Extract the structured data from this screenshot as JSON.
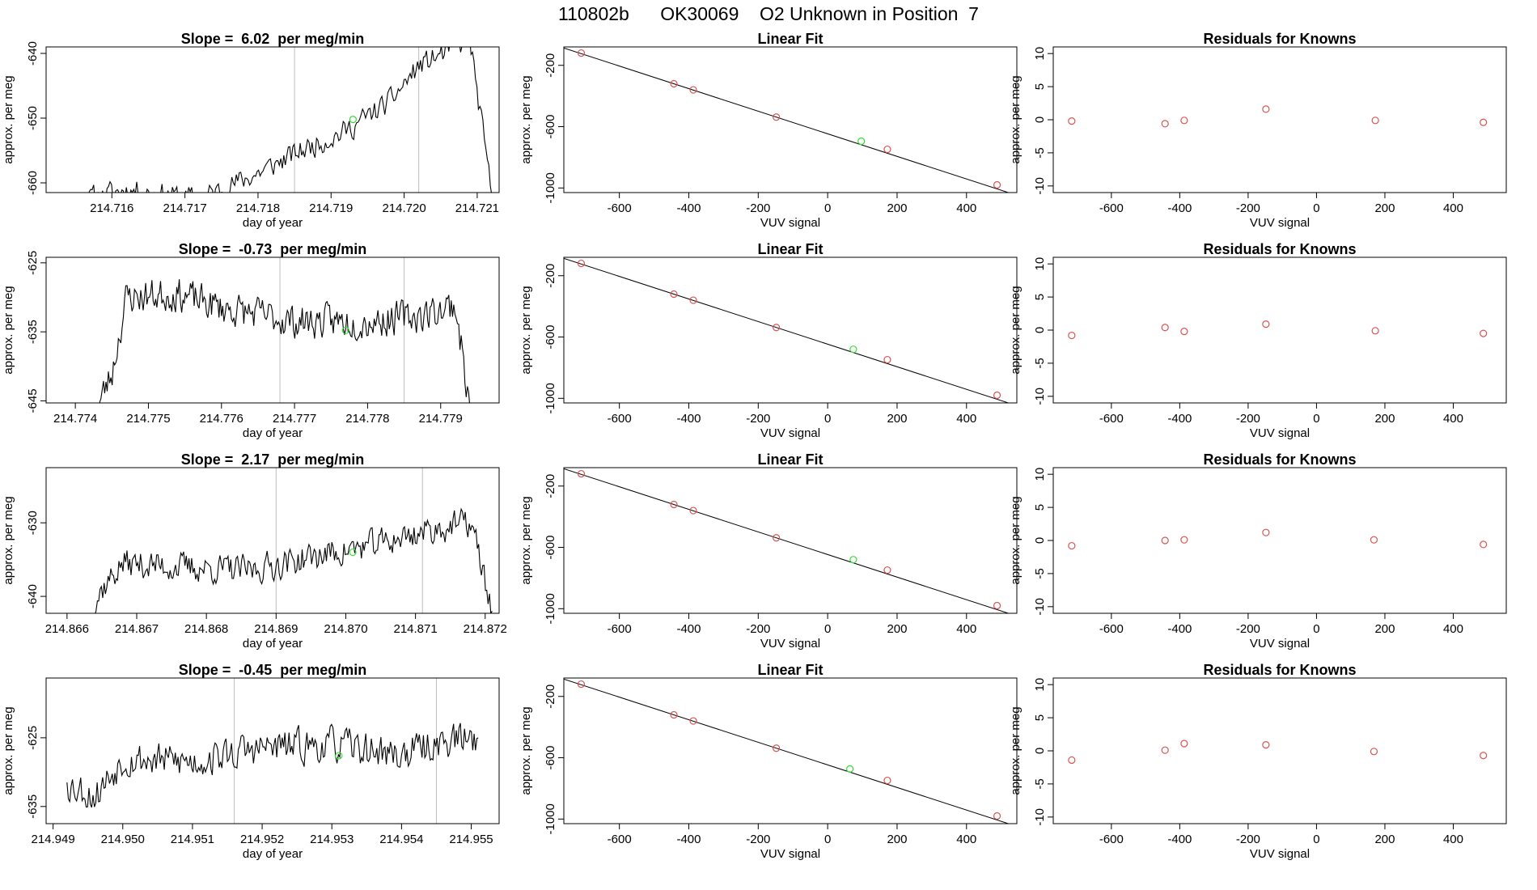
{
  "page_title": "110802b      OK30069    O2 Unknown in Position  7",
  "chart_data": [
    {
      "type": "line",
      "row": 0,
      "kind": "timeseries",
      "title": "Slope =  6.02  per meg/min",
      "xlabel": "day of year",
      "ylabel": "approx. per meg",
      "xlim": [
        214.7151,
        214.7213
      ],
      "ylim": [
        -661.5,
        -639
      ],
      "xticks": [
        "214.716",
        "214.717",
        "214.718",
        "214.719",
        "214.720",
        "214.721"
      ],
      "xtick_values": [
        214.716,
        214.717,
        214.718,
        214.719,
        214.72,
        214.721
      ],
      "yticks": [
        "-660",
        "-650",
        "-640"
      ],
      "ytick_values": [
        -660,
        -650,
        -640
      ],
      "vlines": [
        214.7185,
        214.7202
      ],
      "marker": {
        "x": 214.7193,
        "y": -650.2
      },
      "seed": 11,
      "trend": [
        [
          214.7151,
          -664
        ],
        [
          214.7162,
          -661
        ],
        [
          214.7172,
          -662.5
        ],
        [
          214.718,
          -658.5
        ],
        [
          214.7186,
          -655
        ],
        [
          214.7192,
          -652
        ],
        [
          214.7198,
          -647.5
        ],
        [
          214.7202,
          -642
        ],
        [
          214.7207,
          -639
        ],
        [
          214.7209,
          -638
        ],
        [
          214.7212,
          -662
        ]
      ],
      "noise": 1.6
    },
    {
      "type": "scatter",
      "row": 0,
      "kind": "fit",
      "title": "Linear Fit",
      "xlabel": "VUV signal",
      "ylabel": "approx. per meg",
      "xlim": [
        -760,
        545
      ],
      "ylim": [
        -1030,
        -80
      ],
      "xticks": [
        "-600",
        "-400",
        "-200",
        "0",
        "200",
        "400"
      ],
      "xtick_values": [
        -600,
        -400,
        -200,
        0,
        200,
        400
      ],
      "yticks": [
        "-1000",
        "-600",
        "-200"
      ],
      "ytick_values": [
        -1000,
        -600,
        -200
      ],
      "x": [
        -710,
        -443,
        -387,
        -148,
        172,
        488
      ],
      "y": [
        -120,
        -320,
        -360,
        -538,
        -748,
        -980
      ],
      "unknown": {
        "x": 97,
        "y": -695
      },
      "line": {
        "x": [
          -760,
          545
        ],
        "y": [
          -87,
          -1048
        ]
      }
    },
    {
      "type": "scatter",
      "row": 0,
      "kind": "resid",
      "title": "Residuals for Knowns",
      "xlabel": "VUV signal",
      "ylabel": "approx. per meg",
      "xlim": [
        -770,
        555
      ],
      "ylim": [
        -11,
        11
      ],
      "xticks": [
        "-600",
        "-400",
        "-200",
        "0",
        "200",
        "400"
      ],
      "xtick_values": [
        -600,
        -400,
        -200,
        0,
        200,
        400
      ],
      "yticks": [
        "-10",
        "-5",
        "0",
        "5",
        "10"
      ],
      "ytick_values": [
        -10,
        -5,
        0,
        5,
        10
      ],
      "x": [
        -716,
        -443,
        -387,
        -148,
        172,
        488
      ],
      "y": [
        -0.2,
        -0.6,
        -0.1,
        1.6,
        -0.1,
        -0.4
      ]
    },
    {
      "type": "line",
      "row": 1,
      "kind": "timeseries",
      "title": "Slope =  -0.73  per meg/min",
      "xlabel": "day of year",
      "ylabel": "approx. per meg",
      "xlim": [
        214.7736,
        214.7798
      ],
      "ylim": [
        -645.3,
        -624.2
      ],
      "xticks": [
        "214.774",
        "214.775",
        "214.776",
        "214.777",
        "214.778",
        "214.779"
      ],
      "xtick_values": [
        214.774,
        214.775,
        214.776,
        214.777,
        214.778,
        214.779
      ],
      "yticks": [
        "-645",
        "-635",
        "-625"
      ],
      "ytick_values": [
        -645,
        -635,
        -625
      ],
      "vlines": [
        214.7768,
        214.7785
      ],
      "marker": {
        "x": 214.7777,
        "y": -634.8
      },
      "seed": 23,
      "trend": [
        [
          214.7743,
          -646
        ],
        [
          214.7745,
          -641
        ],
        [
          214.7747,
          -630
        ],
        [
          214.7754,
          -629.5
        ],
        [
          214.776,
          -631.5
        ],
        [
          214.777,
          -633.5
        ],
        [
          214.778,
          -633.5
        ],
        [
          214.7788,
          -632.5
        ],
        [
          214.7792,
          -631
        ],
        [
          214.7794,
          -646
        ]
      ],
      "noise": 2.2
    },
    {
      "type": "scatter",
      "row": 1,
      "kind": "fit",
      "title": "Linear Fit",
      "xlabel": "VUV signal",
      "ylabel": "approx. per meg",
      "xlim": [
        -760,
        545
      ],
      "ylim": [
        -1030,
        -80
      ],
      "xticks": [
        "-600",
        "-400",
        "-200",
        "0",
        "200",
        "400"
      ],
      "xtick_values": [
        -600,
        -400,
        -200,
        0,
        200,
        400
      ],
      "yticks": [
        "-1000",
        "-600",
        "-200"
      ],
      "ytick_values": [
        -1000,
        -600,
        -200
      ],
      "x": [
        -710,
        -443,
        -387,
        -148,
        172,
        488
      ],
      "y": [
        -120,
        -320,
        -360,
        -538,
        -748,
        -980
      ],
      "unknown": {
        "x": 74,
        "y": -680
      },
      "line": {
        "x": [
          -760,
          545
        ],
        "y": [
          -87,
          -1048
        ]
      }
    },
    {
      "type": "scatter",
      "row": 1,
      "kind": "resid",
      "title": "Residuals for Knowns",
      "xlabel": "VUV signal",
      "ylabel": "approx. per meg",
      "xlim": [
        -770,
        555
      ],
      "ylim": [
        -11,
        11
      ],
      "xticks": [
        "-600",
        "-400",
        "-200",
        "0",
        "200",
        "400"
      ],
      "xtick_values": [
        -600,
        -400,
        -200,
        0,
        200,
        400
      ],
      "yticks": [
        "-10",
        "-5",
        "0",
        "5",
        "10"
      ],
      "ytick_values": [
        -10,
        -5,
        0,
        5,
        10
      ],
      "x": [
        -716,
        -443,
        -387,
        -148,
        172,
        488
      ],
      "y": [
        -0.8,
        0.4,
        -0.2,
        0.9,
        -0.1,
        -0.5
      ]
    },
    {
      "type": "line",
      "row": 2,
      "kind": "timeseries",
      "title": "Slope =  2.17  per meg/min",
      "xlabel": "day of year",
      "ylabel": "approx. per meg",
      "xlim": [
        214.8657,
        214.8722
      ],
      "ylim": [
        -642.3,
        -622.5
      ],
      "xticks": [
        "214.866",
        "214.867",
        "214.868",
        "214.869",
        "214.870",
        "214.871",
        "214.872"
      ],
      "xtick_values": [
        214.866,
        214.867,
        214.868,
        214.869,
        214.87,
        214.871,
        214.872
      ],
      "yticks": [
        "-640",
        "-630"
      ],
      "ytick_values": [
        -640,
        -630
      ],
      "vlines": [
        214.869,
        214.8711
      ],
      "marker": {
        "x": 214.8701,
        "y": -634
      },
      "seed": 37,
      "trend": [
        [
          214.8663,
          -643
        ],
        [
          214.8665,
          -639
        ],
        [
          214.8668,
          -635.5
        ],
        [
          214.8676,
          -636
        ],
        [
          214.8686,
          -636.5
        ],
        [
          214.8696,
          -634.5
        ],
        [
          214.8704,
          -633
        ],
        [
          214.8712,
          -631
        ],
        [
          214.8718,
          -630
        ],
        [
          214.8721,
          -642
        ]
      ],
      "noise": 1.8
    },
    {
      "type": "scatter",
      "row": 2,
      "kind": "fit",
      "title": "Linear Fit",
      "xlabel": "VUV signal",
      "ylabel": "approx. per meg",
      "xlim": [
        -760,
        545
      ],
      "ylim": [
        -1030,
        -80
      ],
      "xticks": [
        "-600",
        "-400",
        "-200",
        "0",
        "200",
        "400"
      ],
      "xtick_values": [
        -600,
        -400,
        -200,
        0,
        200,
        400
      ],
      "yticks": [
        "-1000",
        "-600",
        "-200"
      ],
      "ytick_values": [
        -1000,
        -600,
        -200
      ],
      "x": [
        -710,
        -443,
        -387,
        -148,
        172,
        488
      ],
      "y": [
        -120,
        -320,
        -360,
        -538,
        -748,
        -980
      ],
      "unknown": {
        "x": 74,
        "y": -680
      },
      "line": {
        "x": [
          -760,
          545
        ],
        "y": [
          -87,
          -1048
        ]
      }
    },
    {
      "type": "scatter",
      "row": 2,
      "kind": "resid",
      "title": "Residuals for Knowns",
      "xlabel": "VUV signal",
      "ylabel": "approx. per meg",
      "xlim": [
        -770,
        555
      ],
      "ylim": [
        -11,
        11
      ],
      "xticks": [
        "-600",
        "-400",
        "-200",
        "0",
        "200",
        "400"
      ],
      "xtick_values": [
        -600,
        -400,
        -200,
        0,
        200,
        400
      ],
      "yticks": [
        "-10",
        "-5",
        "0",
        "5",
        "10"
      ],
      "ytick_values": [
        -10,
        -5,
        0,
        5,
        10
      ],
      "x": [
        -716,
        -443,
        -387,
        -148,
        168,
        488
      ],
      "y": [
        -0.8,
        0.0,
        0.1,
        1.2,
        0.1,
        -0.6
      ]
    },
    {
      "type": "line",
      "row": 3,
      "kind": "timeseries",
      "title": "Slope =  -0.45  per meg/min",
      "xlabel": "day of year",
      "ylabel": "approx. per meg",
      "xlim": [
        214.9489,
        214.9554
      ],
      "ylim": [
        -637.5,
        -616.3
      ],
      "xticks": [
        "214.949",
        "214.950",
        "214.951",
        "214.952",
        "214.953",
        "214.954",
        "214.955"
      ],
      "xtick_values": [
        214.949,
        214.95,
        214.951,
        214.952,
        214.953,
        214.954,
        214.955
      ],
      "yticks": [
        "-635",
        "-625"
      ],
      "ytick_values": [
        -635,
        -625
      ],
      "vlines": [
        214.9516,
        214.9545
      ],
      "marker": {
        "x": 214.9531,
        "y": -627.6
      },
      "seed": 53,
      "trend": [
        [
          214.9492,
          -631.5
        ],
        [
          214.9496,
          -633.5
        ],
        [
          214.95,
          -628
        ],
        [
          214.951,
          -628.5
        ],
        [
          214.952,
          -626.5
        ],
        [
          214.953,
          -626
        ],
        [
          214.954,
          -627.5
        ],
        [
          214.9546,
          -625.5
        ],
        [
          214.9551,
          -625
        ]
      ],
      "noise": 2.3
    },
    {
      "type": "scatter",
      "row": 3,
      "kind": "fit",
      "title": "Linear Fit",
      "xlabel": "VUV signal",
      "ylabel": "approx. per meg",
      "xlim": [
        -760,
        545
      ],
      "ylim": [
        -1030,
        -80
      ],
      "xticks": [
        "-600",
        "-400",
        "-200",
        "0",
        "200",
        "400"
      ],
      "xtick_values": [
        -600,
        -400,
        -200,
        0,
        200,
        400
      ],
      "yticks": [
        "-1000",
        "-600",
        "-200"
      ],
      "ytick_values": [
        -1000,
        -600,
        -200
      ],
      "x": [
        -710,
        -443,
        -387,
        -148,
        172,
        488
      ],
      "y": [
        -120,
        -320,
        -360,
        -538,
        -748,
        -980
      ],
      "unknown": {
        "x": 64,
        "y": -673
      },
      "line": {
        "x": [
          -760,
          545
        ],
        "y": [
          -87,
          -1048
        ]
      }
    },
    {
      "type": "scatter",
      "row": 3,
      "kind": "resid",
      "title": "Residuals for Knowns",
      "xlabel": "VUV signal",
      "ylabel": "approx. per meg",
      "xlim": [
        -770,
        555
      ],
      "ylim": [
        -11,
        11
      ],
      "xticks": [
        "-600",
        "-400",
        "-200",
        "0",
        "200",
        "400"
      ],
      "xtick_values": [
        -600,
        -400,
        -200,
        0,
        200,
        400
      ],
      "yticks": [
        "-10",
        "-5",
        "0",
        "5",
        "10"
      ],
      "ytick_values": [
        -10,
        -5,
        0,
        5,
        10
      ],
      "x": [
        -716,
        -443,
        -387,
        -148,
        168,
        488
      ],
      "y": [
        -1.4,
        0.1,
        1.1,
        0.9,
        -0.1,
        -0.7
      ]
    }
  ]
}
